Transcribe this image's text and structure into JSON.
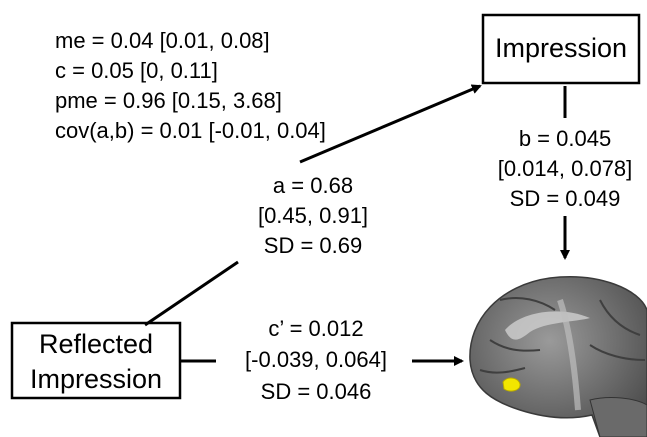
{
  "stats": [
    "me = 0.04 [0.01, 0.08]",
    "c = 0.05 [0, 0.11]",
    "pme = 0.96 [0.15, 3.68]",
    "cov(a,b) = 0.01 [-0.01, 0.04]"
  ],
  "nodes": {
    "mediator": "Impression",
    "predictor": [
      "Reflected",
      "Impression"
    ]
  },
  "paths": {
    "a": [
      "a = 0.68",
      "[0.45, 0.91]",
      "SD = 0.69"
    ],
    "b": [
      "b = 0.045",
      "[0.014, 0.078]",
      "SD = 0.049"
    ],
    "c_prime": [
      "c’ = 0.012",
      "[-0.039, 0.064]",
      "SD = 0.046"
    ]
  }
}
